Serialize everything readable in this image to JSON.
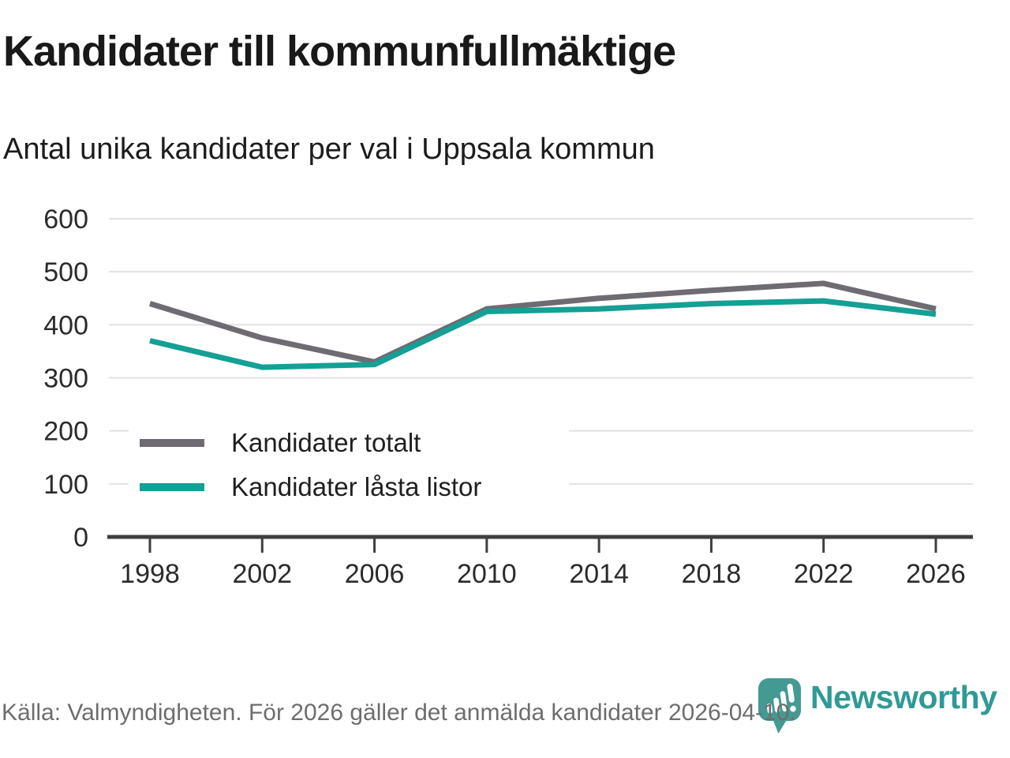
{
  "header": {
    "title": "Kandidater till kommunfullmäktige",
    "subtitle": "Antal unika kandidater per val i Uppsala kommun"
  },
  "chart_data": {
    "type": "line",
    "categories": [
      1998,
      2002,
      2006,
      2010,
      2014,
      2018,
      2022,
      2026
    ],
    "series": [
      {
        "name": "Kandidater totalt",
        "color": "#6f6b72",
        "values": [
          440,
          375,
          330,
          430,
          450,
          465,
          478,
          430
        ]
      },
      {
        "name": "Kandidater låsta listor",
        "color": "#14a094",
        "values": [
          370,
          320,
          325,
          425,
          430,
          440,
          445,
          420
        ]
      }
    ],
    "title": "Kandidater till kommunfullmäktige",
    "subtitle": "Antal unika kandidater per val i Uppsala kommun",
    "xlabel": "",
    "ylabel": "",
    "ylim": [
      0,
      600
    ],
    "yticks": [
      0,
      100,
      200,
      300,
      400,
      500,
      600
    ],
    "grid": true,
    "legend_position": "inside-bottom-left"
  },
  "style": {
    "grid_color": "#e2e2e2",
    "axis_color": "#3f3f3f",
    "tick_label_color": "#2b2b2b",
    "accent_teal": "#14a094",
    "series_gray": "#6f6b72",
    "muted_text": "#6d6d6d",
    "logo_teal": "#449993"
  },
  "footer": {
    "source": "Källa: Valmyndigheten. För 2026 gäller det anmälda kandidater 2026-04-10.",
    "logo_text": "Newsworthy"
  }
}
